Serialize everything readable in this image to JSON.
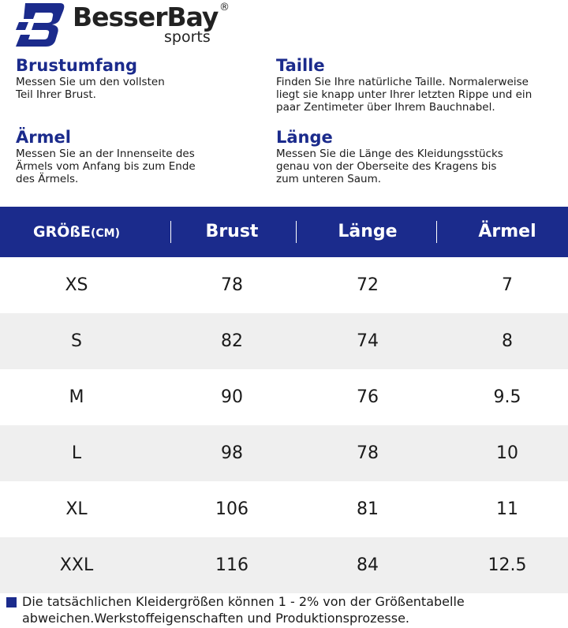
{
  "logo": {
    "brand": "BesserBay",
    "mark": "®",
    "sub": "sports"
  },
  "definitions": [
    {
      "title": "Brustumfang",
      "lines": [
        "Messen Sie um den vollsten",
        "Teil Ihrer Brust."
      ]
    },
    {
      "title": "Taille",
      "lines": [
        "Finden Sie Ihre natürliche Taille. Normalerweise",
        "liegt sie knapp unter Ihrer letzten Rippe und ein",
        "paar Zentimeter über Ihrem Bauchnabel."
      ]
    },
    {
      "title": "Ärmel",
      "lines": [
        "Messen Sie an der Innenseite des",
        "Ärmels vom Anfang bis zum Ende",
        "des Ärmels."
      ]
    },
    {
      "title": "Länge",
      "lines": [
        "Messen Sie die Länge des Kleidungsstücks",
        "genau von der Oberseite des Kragens bis",
        "zum unteren Saum."
      ]
    }
  ],
  "table": {
    "header": [
      "GRÖßE",
      "Brust",
      "Länge",
      "Ärmel"
    ],
    "header_unit": "(CM)",
    "rows": [
      [
        "XS",
        78,
        72,
        7
      ],
      [
        "S",
        82,
        74,
        8
      ],
      [
        "M",
        90,
        76,
        9.5
      ],
      [
        "L",
        98,
        78,
        10
      ],
      [
        "XL",
        106,
        81,
        11
      ],
      [
        "XXL",
        116,
        84,
        12.5
      ]
    ]
  },
  "footnote": [
    "Die tatsächlichen Kleidergrößen können 1 - 2% von der Größentabelle",
    "abweichen.Werkstoffeigenschaften und Produktionsprozesse."
  ]
}
